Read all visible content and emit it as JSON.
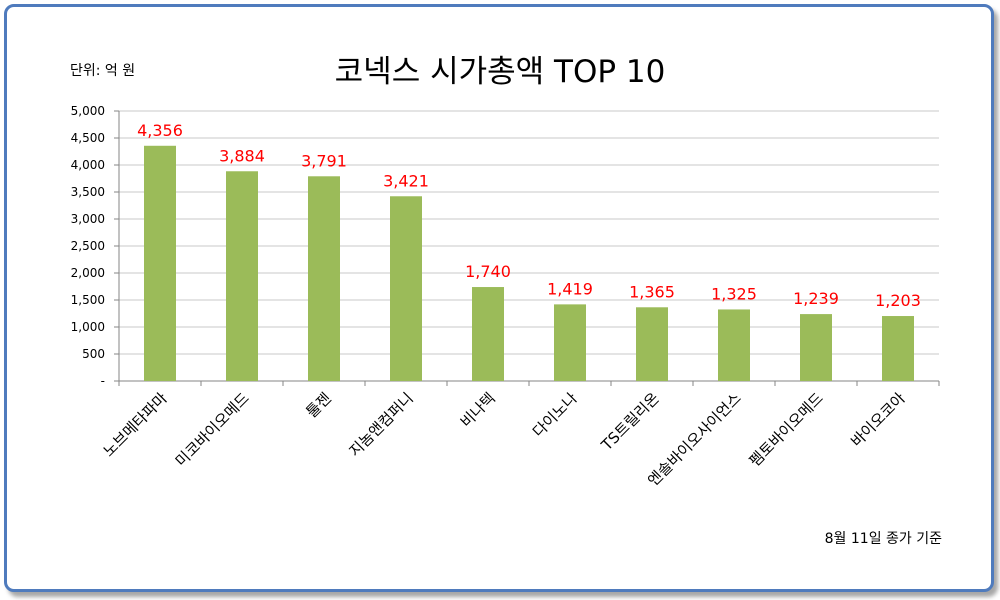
{
  "unit_label": "단위: 억 원",
  "footnote": "8월 11일 종가 기준",
  "colors": {
    "bar": "#9bbb59",
    "data_label": "#ff0000",
    "frame": "#4f7bbd",
    "grid": "#c8c8c8"
  },
  "chart_data": {
    "type": "bar",
    "title": "코넥스 시가총액 TOP 10",
    "xlabel": "",
    "ylabel": "",
    "categories": [
      "노브메타파마",
      "미코바이오메드",
      "툴젠",
      "지놈앤컴퍼니",
      "비나텍",
      "다이노나",
      "TS트릴리온",
      "엔솔바이오사이언스",
      "펨토바이오메드",
      "바이오코아"
    ],
    "values": [
      4356,
      3884,
      3791,
      3421,
      1740,
      1419,
      1365,
      1325,
      1239,
      1203
    ],
    "data_labels": [
      "4,356",
      "3,884",
      "3,791",
      "3,421",
      "1,740",
      "1,419",
      "1,365",
      "1,325",
      "1,239",
      "1,203"
    ],
    "ylim": [
      0,
      5000
    ],
    "yticks": [
      "-",
      "500",
      "1,000",
      "1,500",
      "2,000",
      "2,500",
      "3,000",
      "3,500",
      "4,000",
      "4,500",
      "5,000"
    ],
    "grid": true,
    "legend": "none"
  }
}
